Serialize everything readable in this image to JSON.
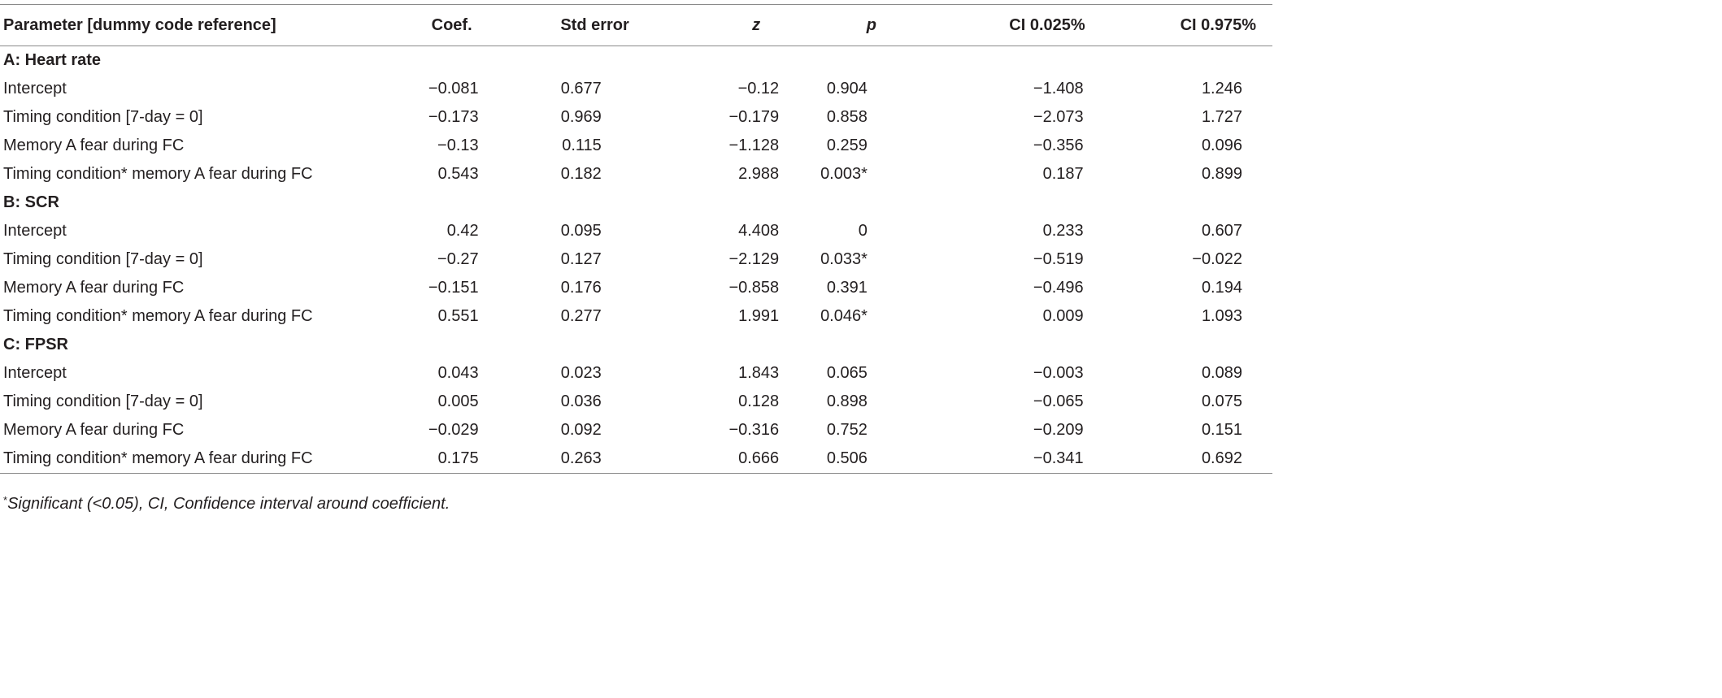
{
  "table": {
    "headers": [
      {
        "label": "Parameter [dummy code reference]",
        "italic": false
      },
      {
        "label": "Coef.",
        "italic": false
      },
      {
        "label": "Std error",
        "italic": false
      },
      {
        "label": "z",
        "italic": true
      },
      {
        "label": "p",
        "italic": true
      },
      {
        "label": "CI 0.025%",
        "italic": false
      },
      {
        "label": "CI 0.975%",
        "italic": false
      }
    ],
    "sections": [
      {
        "title": "A: Heart rate",
        "rows": [
          [
            "Intercept",
            "−0.081",
            "0.677",
            "−0.12",
            "0.904",
            "−1.408",
            "1.246"
          ],
          [
            "Timing condition [7-day = 0]",
            "−0.173",
            "0.969",
            "−0.179",
            "0.858",
            "−2.073",
            "1.727"
          ],
          [
            "Memory A fear during FC",
            "−0.13",
            "0.115",
            "−1.128",
            "0.259",
            "−0.356",
            "0.096"
          ],
          [
            "Timing condition* memory A fear during FC",
            "0.543",
            "0.182",
            "2.988",
            "0.003*",
            "0.187",
            "0.899"
          ]
        ]
      },
      {
        "title": "B: SCR",
        "rows": [
          [
            "Intercept",
            "0.42",
            "0.095",
            "4.408",
            "0",
            "0.233",
            "0.607"
          ],
          [
            "Timing condition [7-day = 0]",
            "−0.27",
            "0.127",
            "−2.129",
            "0.033*",
            "−0.519",
            "−0.022"
          ],
          [
            "Memory A fear during FC",
            "−0.151",
            "0.176",
            "−0.858",
            "0.391",
            "−0.496",
            "0.194"
          ],
          [
            "Timing condition* memory A fear during FC",
            "0.551",
            "0.277",
            "1.991",
            "0.046*",
            "0.009",
            "1.093"
          ]
        ]
      },
      {
        "title": "C: FPSR",
        "rows": [
          [
            "Intercept",
            "0.043",
            "0.023",
            "1.843",
            "0.065",
            "−0.003",
            "0.089"
          ],
          [
            "Timing condition [7-day = 0]",
            "0.005",
            "0.036",
            "0.128",
            "0.898",
            "−0.065",
            "0.075"
          ],
          [
            "Memory A fear during FC",
            "−0.029",
            "0.092",
            "−0.316",
            "0.752",
            "−0.209",
            "0.151"
          ],
          [
            "Timing condition* memory A fear during FC",
            "0.175",
            "0.263",
            "0.666",
            "0.506",
            "−0.341",
            "0.692"
          ]
        ]
      }
    ]
  },
  "footnote": {
    "marker": "*",
    "text": "Significant (<0.05), CI, Confidence interval around coefficient."
  }
}
